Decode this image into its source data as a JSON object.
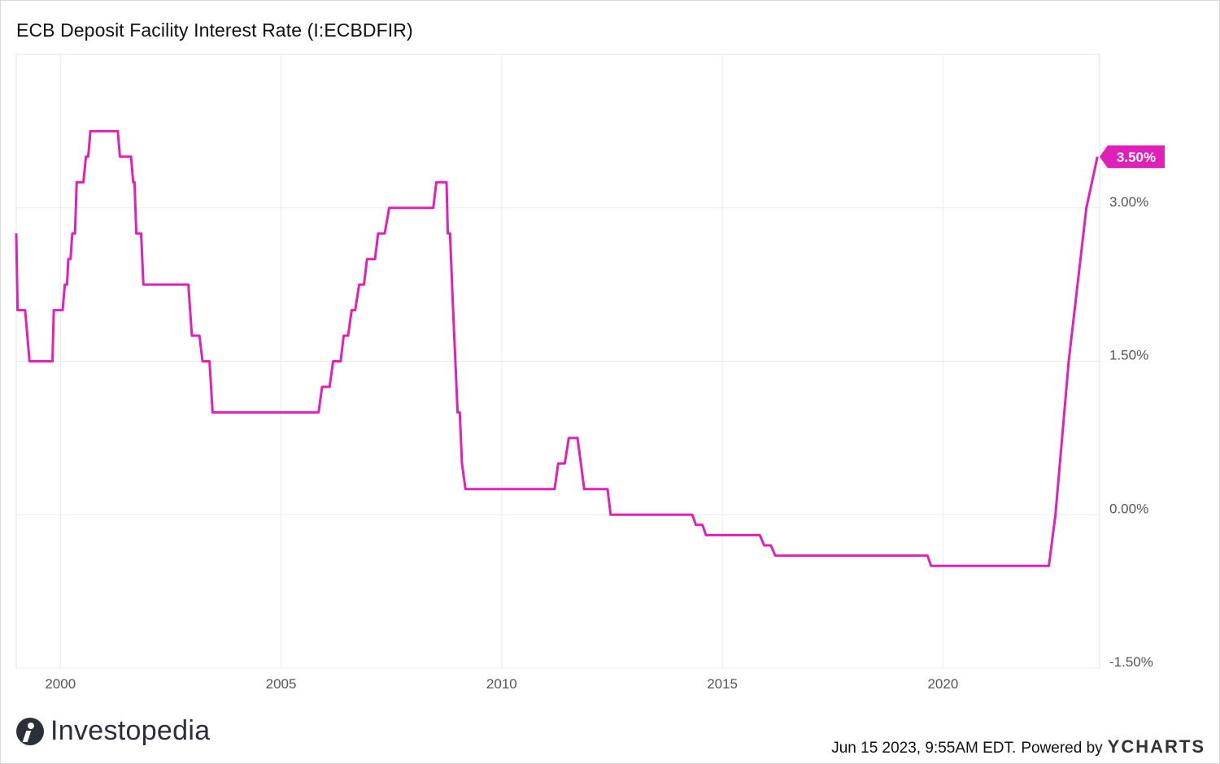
{
  "header": {
    "title": "ECB Deposit Facility Interest Rate (I:ECBDFIR)"
  },
  "footer": {
    "timestamp": "Jun 15 2023, 9:55AM EDT.",
    "powered_by": "Powered by",
    "brand": "YCHARTS"
  },
  "logo": {
    "text": "Investopedia",
    "icon": "investopedia-logo-icon"
  },
  "colors": {
    "line": "#e020b6",
    "grid": "#ebebeb",
    "axis_text": "#555555"
  },
  "chart_data": {
    "type": "line",
    "title": "ECB Deposit Facility Interest Rate (I:ECBDFIR)",
    "xlabel": "",
    "ylabel": "",
    "x_ticks": [
      2000,
      2005,
      2010,
      2015,
      2020
    ],
    "x_tick_labels": [
      "2000",
      "2005",
      "2010",
      "2015",
      "2020"
    ],
    "y_ticks": [
      -1.5,
      0,
      1.5,
      3
    ],
    "y_tick_labels": [
      "-1.50%",
      "0.00%",
      "1.50%",
      "3.00%"
    ],
    "xlim": [
      1999.0,
      2023.55
    ],
    "ylim": [
      -1.5,
      4.5
    ],
    "y_axis_position": "right",
    "grid": true,
    "last_value_label": "3.50%",
    "series": [
      {
        "points": [
          [
            1999.0,
            2.75
          ],
          [
            1999.03,
            2.0
          ],
          [
            1999.2,
            2.0
          ],
          [
            1999.3,
            1.5
          ],
          [
            1999.82,
            1.5
          ],
          [
            1999.85,
            2.0
          ],
          [
            2000.05,
            2.0
          ],
          [
            2000.1,
            2.25
          ],
          [
            2000.15,
            2.25
          ],
          [
            2000.18,
            2.5
          ],
          [
            2000.23,
            2.5
          ],
          [
            2000.27,
            2.75
          ],
          [
            2000.33,
            2.75
          ],
          [
            2000.37,
            3.25
          ],
          [
            2000.52,
            3.25
          ],
          [
            2000.58,
            3.5
          ],
          [
            2000.63,
            3.5
          ],
          [
            2000.68,
            3.75
          ],
          [
            2001.3,
            3.75
          ],
          [
            2001.35,
            3.5
          ],
          [
            2001.6,
            3.5
          ],
          [
            2001.65,
            3.25
          ],
          [
            2001.68,
            3.25
          ],
          [
            2001.72,
            2.75
          ],
          [
            2001.83,
            2.75
          ],
          [
            2001.88,
            2.25
          ],
          [
            2002.9,
            2.25
          ],
          [
            2002.98,
            1.75
          ],
          [
            2003.15,
            1.75
          ],
          [
            2003.22,
            1.5
          ],
          [
            2003.38,
            1.5
          ],
          [
            2003.45,
            1.0
          ],
          [
            2005.85,
            1.0
          ],
          [
            2005.93,
            1.25
          ],
          [
            2006.1,
            1.25
          ],
          [
            2006.18,
            1.5
          ],
          [
            2006.35,
            1.5
          ],
          [
            2006.42,
            1.75
          ],
          [
            2006.52,
            1.75
          ],
          [
            2006.6,
            2.0
          ],
          [
            2006.68,
            2.0
          ],
          [
            2006.77,
            2.25
          ],
          [
            2006.88,
            2.25
          ],
          [
            2006.95,
            2.5
          ],
          [
            2007.13,
            2.5
          ],
          [
            2007.2,
            2.75
          ],
          [
            2007.35,
            2.75
          ],
          [
            2007.45,
            3.0
          ],
          [
            2008.45,
            3.0
          ],
          [
            2008.52,
            3.25
          ],
          [
            2008.75,
            3.25
          ],
          [
            2008.78,
            2.75
          ],
          [
            2008.83,
            2.75
          ],
          [
            2008.9,
            2.0
          ],
          [
            2008.95,
            1.5
          ],
          [
            2009.0,
            1.0
          ],
          [
            2009.05,
            1.0
          ],
          [
            2009.1,
            0.5
          ],
          [
            2009.18,
            0.25
          ],
          [
            2011.2,
            0.25
          ],
          [
            2011.28,
            0.5
          ],
          [
            2011.43,
            0.5
          ],
          [
            2011.52,
            0.75
          ],
          [
            2011.72,
            0.75
          ],
          [
            2011.87,
            0.25
          ],
          [
            2012.4,
            0.25
          ],
          [
            2012.47,
            0.0
          ],
          [
            2014.32,
            0.0
          ],
          [
            2014.4,
            -0.1
          ],
          [
            2014.55,
            -0.1
          ],
          [
            2014.63,
            -0.2
          ],
          [
            2015.85,
            -0.2
          ],
          [
            2015.95,
            -0.3
          ],
          [
            2016.1,
            -0.3
          ],
          [
            2016.2,
            -0.4
          ],
          [
            2019.65,
            -0.4
          ],
          [
            2019.73,
            -0.5
          ],
          [
            2022.4,
            -0.5
          ],
          [
            2022.55,
            0.0
          ],
          [
            2022.85,
            1.5
          ],
          [
            2023.25,
            3.0
          ],
          [
            2023.5,
            3.5
          ]
        ]
      }
    ]
  }
}
